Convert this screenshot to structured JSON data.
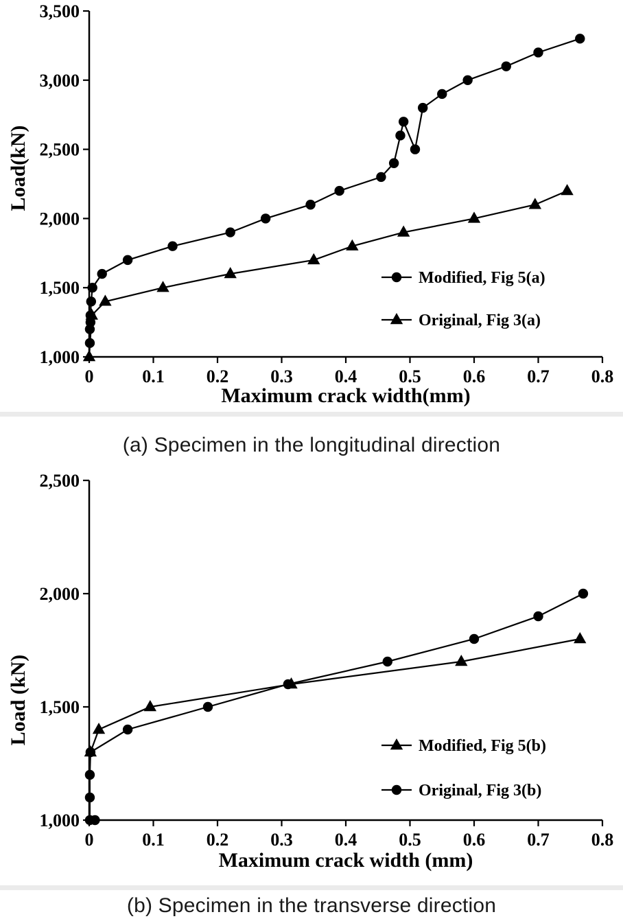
{
  "colors": {
    "ink": "#000000",
    "caption_text": "#1a1a1a",
    "separator": "#ebebeb",
    "background": "#ffffff"
  },
  "figures": [
    {
      "caption": "(a) Specimen in the longitudinal direction"
    },
    {
      "caption": "(b) Specimen in the transverse direction"
    }
  ],
  "chart_data": [
    {
      "id": "chart-a",
      "type": "line",
      "title": "",
      "xlabel": "Maximum crack width(mm)",
      "ylabel": "Load(kN)",
      "xlim": [
        0,
        0.8
      ],
      "ylim": [
        1000,
        3500
      ],
      "grid": false,
      "legend_position": "inside-right-lower",
      "x_ticks": [
        0,
        0.1,
        0.2,
        0.3,
        0.4,
        0.5,
        0.6,
        0.7,
        0.8
      ],
      "x_tick_labels": [
        "0",
        "0.1",
        "0.2",
        "0.3",
        "0.4",
        "0.5",
        "0.6",
        "0.7",
        "0.8"
      ],
      "y_ticks": [
        1000,
        1500,
        2000,
        2500,
        3000,
        3500
      ],
      "y_tick_labels": [
        "1,000",
        "1,500",
        "2,000",
        "2,500",
        "3,000",
        "3,500"
      ],
      "series": [
        {
          "name": "Modified, Fig 5(a)",
          "marker": "circle",
          "points": [
            [
              0.001,
              1100
            ],
            [
              0.001,
              1200
            ],
            [
              0.002,
              1250
            ],
            [
              0.002,
              1300
            ],
            [
              0.003,
              1400
            ],
            [
              0.005,
              1500
            ],
            [
              0.02,
              1600
            ],
            [
              0.06,
              1700
            ],
            [
              0.13,
              1800
            ],
            [
              0.22,
              1900
            ],
            [
              0.275,
              2000
            ],
            [
              0.345,
              2100
            ],
            [
              0.39,
              2200
            ],
            [
              0.455,
              2300
            ],
            [
              0.475,
              2400
            ],
            [
              0.485,
              2600
            ],
            [
              0.49,
              2700
            ],
            [
              0.508,
              2500
            ],
            [
              0.52,
              2800
            ],
            [
              0.55,
              2900
            ],
            [
              0.59,
              3000
            ],
            [
              0.65,
              3100
            ],
            [
              0.7,
              3200
            ],
            [
              0.765,
              3300
            ]
          ]
        },
        {
          "name": "Original, Fig 3(a)",
          "marker": "triangle",
          "points": [
            [
              0.0,
              1000
            ],
            [
              0.004,
              1300
            ],
            [
              0.025,
              1400
            ],
            [
              0.115,
              1500
            ],
            [
              0.22,
              1600
            ],
            [
              0.35,
              1700
            ],
            [
              0.41,
              1800
            ],
            [
              0.49,
              1900
            ],
            [
              0.6,
              2000
            ],
            [
              0.695,
              2100
            ],
            [
              0.745,
              2200
            ]
          ]
        }
      ]
    },
    {
      "id": "chart-b",
      "type": "line",
      "title": "",
      "xlabel": "Maximum crack width (mm)",
      "ylabel": "Load (kN)",
      "xlim": [
        0,
        0.8
      ],
      "ylim": [
        1000,
        2500
      ],
      "grid": false,
      "legend_position": "inside-right-lower",
      "x_ticks": [
        0,
        0.1,
        0.2,
        0.3,
        0.4,
        0.5,
        0.6,
        0.7,
        0.8
      ],
      "x_tick_labels": [
        "0",
        "0.1",
        "0.2",
        "0.3",
        "0.4",
        "0.5",
        "0.6",
        "0.7",
        "0.8"
      ],
      "y_ticks": [
        1000,
        1500,
        2000,
        2500
      ],
      "y_tick_labels": [
        "1,000",
        "1,500",
        "2,000",
        "2,500"
      ],
      "series": [
        {
          "name": "Modified, Fig 5(b)",
          "marker": "triangle",
          "points": [
            [
              0.002,
              1300
            ],
            [
              0.015,
              1400
            ],
            [
              0.095,
              1500
            ],
            [
              0.315,
              1600
            ],
            [
              0.58,
              1700
            ],
            [
              0.765,
              1800
            ]
          ]
        },
        {
          "name": "Original, Fig 3(b)",
          "marker": "circle",
          "points": [
            [
              0.009,
              1000
            ],
            [
              0.001,
              1000
            ],
            [
              0.001,
              1100
            ],
            [
              0.001,
              1200
            ],
            [
              0.002,
              1300
            ],
            [
              0.06,
              1400
            ],
            [
              0.185,
              1500
            ],
            [
              0.31,
              1600
            ],
            [
              0.465,
              1700
            ],
            [
              0.6,
              1800
            ],
            [
              0.7,
              1900
            ],
            [
              0.77,
              2000
            ]
          ]
        }
      ]
    }
  ]
}
